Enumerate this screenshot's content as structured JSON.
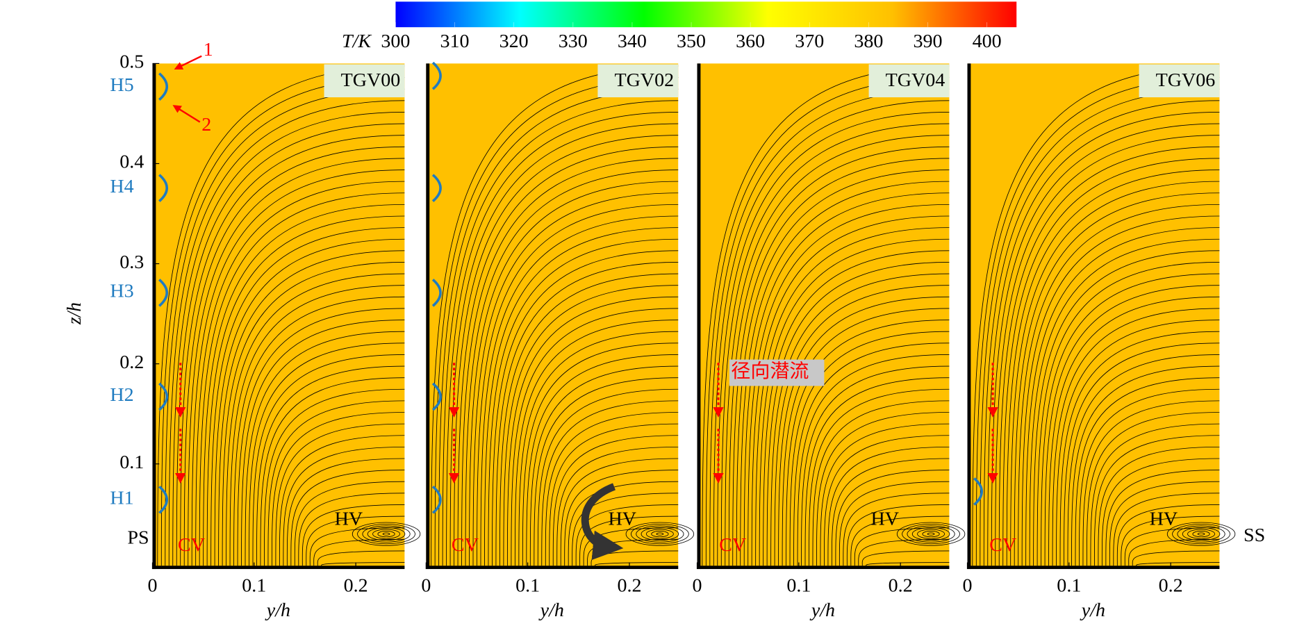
{
  "colorbar": {
    "label": "T/K",
    "clim": [
      300,
      405
    ],
    "ticks": [
      300,
      310,
      320,
      330,
      340,
      350,
      360,
      370,
      380,
      390,
      400
    ],
    "colors": [
      "#0000ff",
      "#00ffff",
      "#00ff00",
      "#ffff00",
      "#ffc000",
      "#ff0000"
    ]
  },
  "chart_data": [
    {
      "type": "contour",
      "title": "TGV00",
      "fill": "#ffc000",
      "xlim": [
        0,
        0.248
      ],
      "xticks": [
        0,
        0.1,
        0.2
      ],
      "xlabel": "y/h",
      "ylim": [
        -0.005,
        0.5
      ],
      "yticks": [
        0.1,
        0.2,
        0.3,
        0.4,
        0.5
      ],
      "ylabel": "z/h",
      "annotations": [
        "H1",
        "H2",
        "H3",
        "H4",
        "H5",
        "PS",
        "CV",
        "HV",
        "1",
        "2"
      ]
    },
    {
      "type": "contour",
      "title": "TGV02",
      "fill": "#ffc000",
      "xlim": [
        0,
        0.248
      ],
      "xticks": [
        0,
        0.1,
        0.2
      ],
      "xlabel": "y/h",
      "ylim": [
        -0.005,
        0.5
      ],
      "annotations": [
        "CV",
        "HV"
      ]
    },
    {
      "type": "contour",
      "title": "TGV04",
      "fill": "#ffc000",
      "xlim": [
        0,
        0.248
      ],
      "xticks": [
        0,
        0.1,
        0.2
      ],
      "xlabel": "y/h",
      "ylim": [
        -0.005,
        0.5
      ],
      "annotations": [
        "径向潜流",
        "CV",
        "HV"
      ]
    },
    {
      "type": "contour",
      "title": "TGV06",
      "fill": "#ffc000",
      "xlim": [
        0,
        0.248
      ],
      "xticks": [
        0,
        0.1,
        0.2
      ],
      "xlabel": "y/h",
      "ylim": [
        -0.005,
        0.5
      ],
      "annotations": [
        "CV",
        "HV",
        "SS"
      ]
    }
  ]
}
